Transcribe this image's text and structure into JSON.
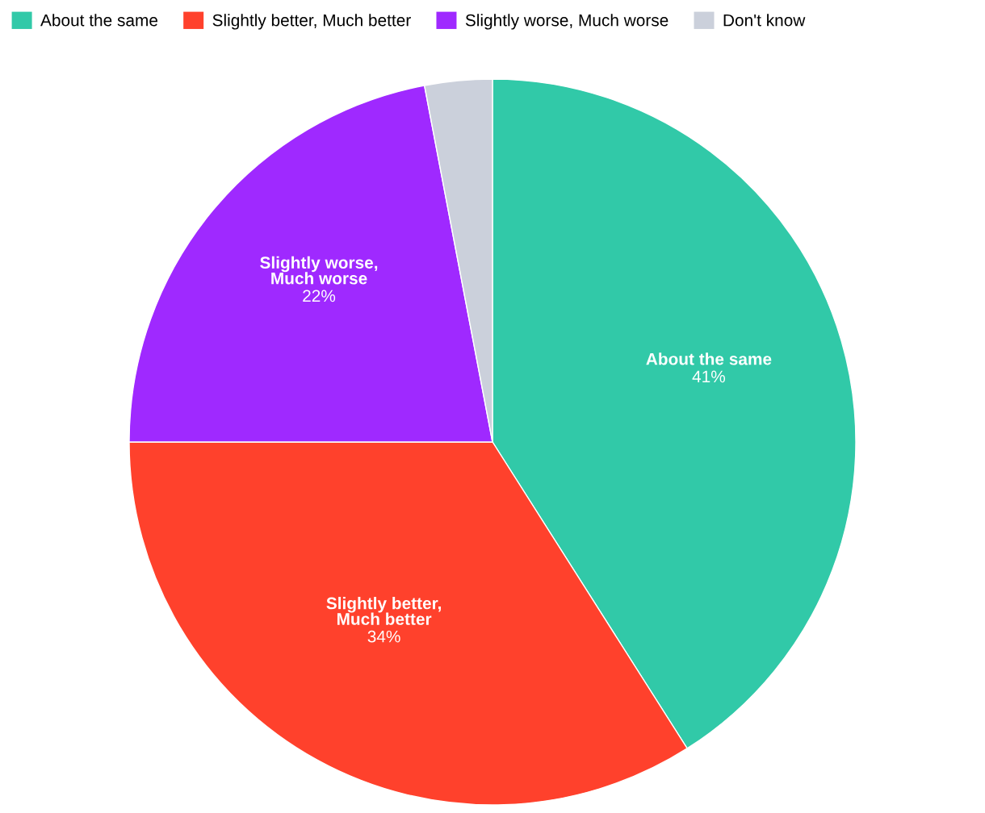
{
  "chart_data": {
    "type": "pie",
    "categories": [
      "About the same",
      "Slightly better, Much better",
      "Slightly worse, Much worse",
      "Don't know"
    ],
    "values": [
      41,
      34,
      22,
      3
    ],
    "colors": [
      "#31c9a8",
      "#ff412c",
      "#9f29ff",
      "#cbd0db"
    ],
    "value_labels": [
      "41%",
      "34%",
      "22%",
      null
    ],
    "legend": "top left"
  }
}
